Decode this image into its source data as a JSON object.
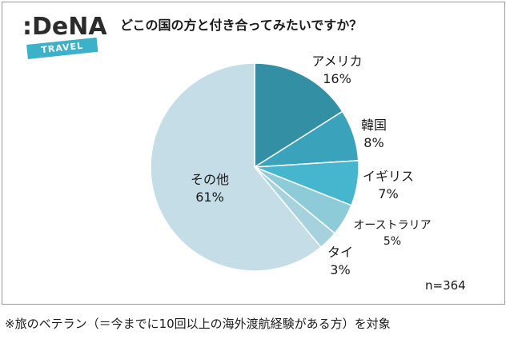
{
  "logo": {
    "wordmark": ":DeNA",
    "tag": "TRAVEL"
  },
  "title": "どこの国の方と付き合ってみたいですか？",
  "sample_size": "n=364",
  "footnote": "※旅のベテラン（＝今までに10回以上の海外渡航経験がある方）を対象",
  "chart_data": {
    "type": "pie",
    "title": "どこの国の方と付き合ってみたいですか？",
    "slices": [
      {
        "label": "アメリカ",
        "value": 16,
        "display": "16%",
        "color": "#328fa4"
      },
      {
        "label": "韓国",
        "value": 8,
        "display": "8%",
        "color": "#3aa3bb"
      },
      {
        "label": "イギリス",
        "value": 7,
        "display": "7%",
        "color": "#45b6cd"
      },
      {
        "label": "オーストラリア",
        "value": 5,
        "display": "5%",
        "color": "#8ecbd8"
      },
      {
        "label": "タイ",
        "value": 3,
        "display": "3%",
        "color": "#a6d2de"
      },
      {
        "label": "その他",
        "value": 61,
        "display": "61%",
        "color": "#c4dde6"
      }
    ]
  }
}
